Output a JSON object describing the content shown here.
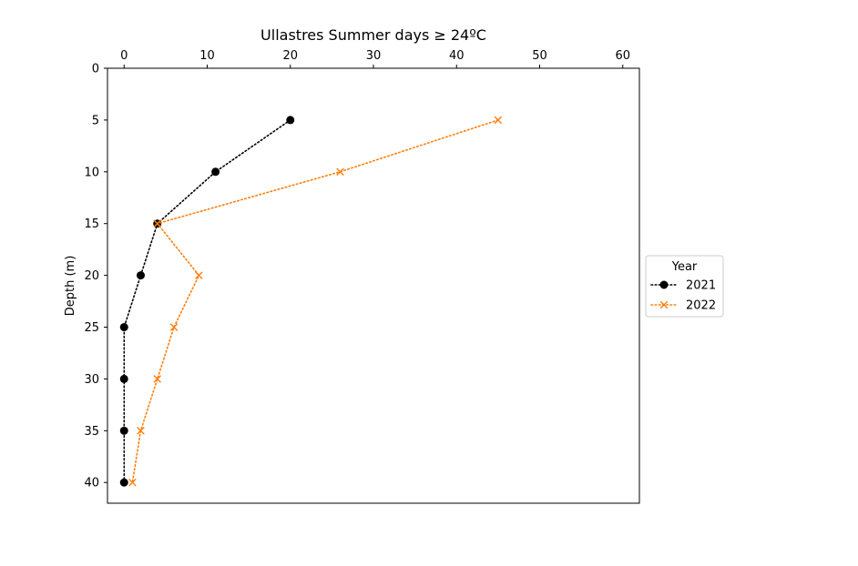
{
  "chart_data": {
    "type": "line",
    "title": "Ullastres Summer days ≥ 24ºC",
    "xlabel": "",
    "ylabel": "Depth (m)",
    "xlim": [
      -2,
      62
    ],
    "ylim": [
      42,
      0
    ],
    "x_axis_position": "top",
    "y_inverted": true,
    "xticks": [
      0,
      10,
      20,
      30,
      40,
      50,
      60
    ],
    "xtick_labels": [
      "0",
      "10",
      "20",
      "30",
      "40",
      "50",
      "60"
    ],
    "yticks": [
      0,
      5,
      10,
      15,
      20,
      25,
      30,
      35,
      40
    ],
    "ytick_labels": [
      "0",
      "5",
      "10",
      "15",
      "20",
      "25",
      "30",
      "35",
      "40"
    ],
    "grid": false,
    "legend": {
      "title": "Year",
      "placement": "center-right-outside"
    },
    "series": [
      {
        "name": "2021",
        "color": "#000000",
        "marker": "circle",
        "linestyle": "dotted",
        "points": [
          {
            "x": 20,
            "y": 5
          },
          {
            "x": 11,
            "y": 10
          },
          {
            "x": 4,
            "y": 15
          },
          {
            "x": 2,
            "y": 20
          },
          {
            "x": 0,
            "y": 25
          },
          {
            "x": 0,
            "y": 30
          },
          {
            "x": 0,
            "y": 35
          },
          {
            "x": 0,
            "y": 40
          }
        ]
      },
      {
        "name": "2022",
        "color": "#ff7f0e",
        "marker": "x",
        "linestyle": "dotted",
        "points": [
          {
            "x": 45,
            "y": 5
          },
          {
            "x": 26,
            "y": 10
          },
          {
            "x": 4,
            "y": 15
          },
          {
            "x": 9,
            "y": 20
          },
          {
            "x": 6,
            "y": 25
          },
          {
            "x": 4,
            "y": 30
          },
          {
            "x": 2,
            "y": 35
          },
          {
            "x": 1,
            "y": 40
          }
        ]
      }
    ]
  }
}
